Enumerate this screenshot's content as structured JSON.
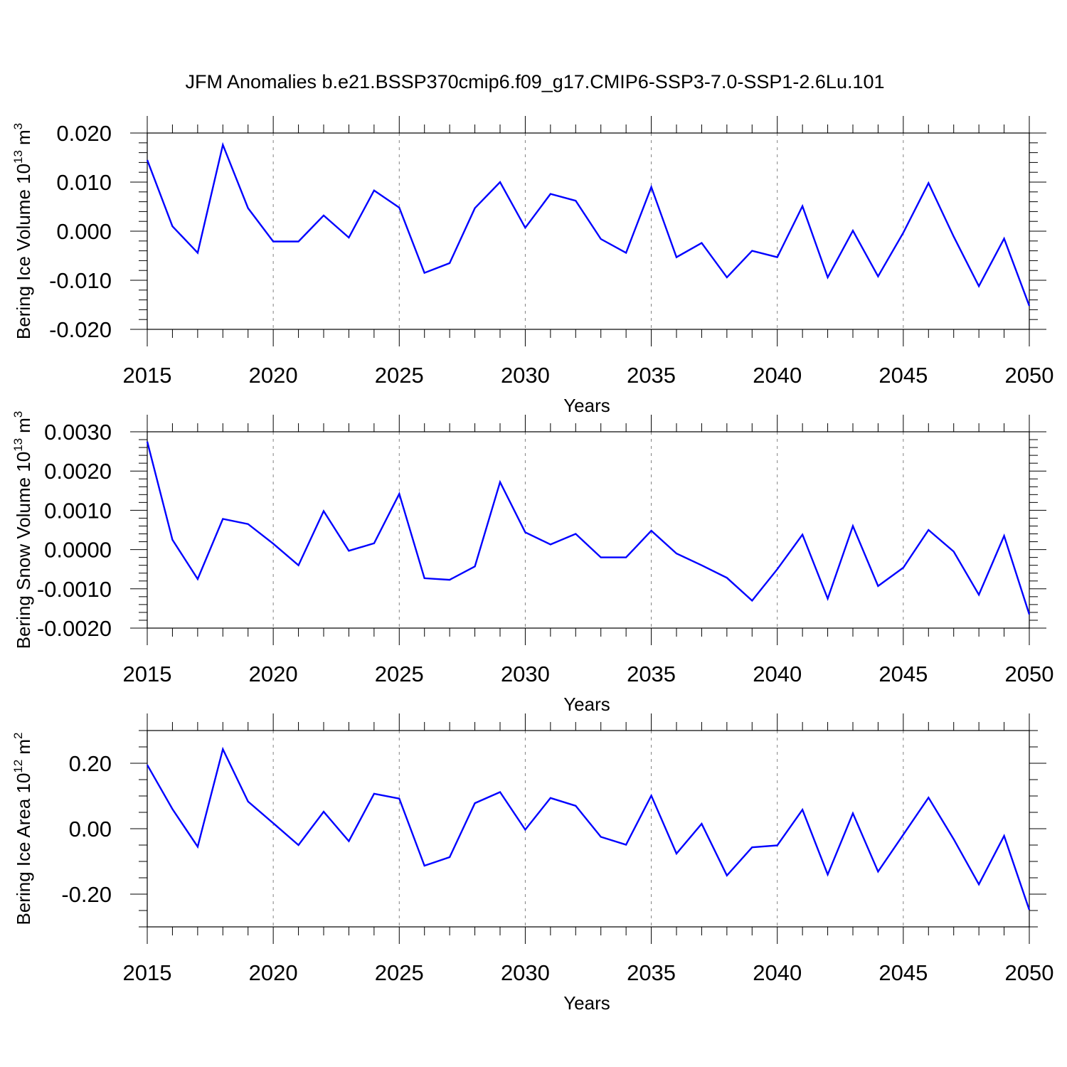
{
  "title": "JFM Anomalies b.e21.BSSP370cmip6.f09_g17.CMIP6-SSP3-7.0-SSP1-2.6Lu.101",
  "colors": {
    "line": "#0000ff",
    "axis": "#000000",
    "grid": "#808080"
  },
  "chart_data": [
    {
      "type": "line",
      "ylabel": "Bering Ice Volume 10",
      "ylabel_exp": "13",
      "ylabel_unit": "m",
      "ylabel_unit_exp": "3",
      "xlabel": "Years",
      "xlim": [
        2015,
        2050
      ],
      "ylim": [
        -0.02,
        0.02
      ],
      "xticks": [
        2015,
        2020,
        2025,
        2030,
        2035,
        2040,
        2045,
        2050
      ],
      "xtick_labels": [
        "2015",
        "2020",
        "2025",
        "2030",
        "2035",
        "2040",
        "2045",
        "2050"
      ],
      "yticks": [
        -0.02,
        -0.01,
        0.0,
        0.01,
        0.02
      ],
      "ytick_labels": [
        "-0.020",
        "-0.010",
        "0.000",
        "0.010",
        "0.020"
      ],
      "yminor_step": 0.002,
      "x": [
        2015,
        2016,
        2017,
        2018,
        2019,
        2020,
        2021,
        2022,
        2023,
        2024,
        2025,
        2026,
        2027,
        2028,
        2029,
        2030,
        2031,
        2032,
        2033,
        2034,
        2035,
        2036,
        2037,
        2038,
        2039,
        2040,
        2041,
        2042,
        2043,
        2044,
        2045,
        2046,
        2047,
        2048,
        2049,
        2050
      ],
      "values": [
        0.0145,
        0.001,
        -0.0044,
        0.0176,
        0.0047,
        -0.0021,
        -0.0021,
        0.0032,
        -0.0013,
        0.0083,
        0.0048,
        -0.0085,
        -0.0065,
        0.0047,
        0.01,
        0.0007,
        0.0076,
        0.0062,
        -0.0016,
        -0.0044,
        0.009,
        -0.0053,
        -0.0024,
        -0.0094,
        -0.004,
        -0.0053,
        0.0051,
        -0.0094,
        0.0001,
        -0.0092,
        -0.0003,
        0.0098,
        -0.0011,
        -0.0112,
        -0.0015,
        -0.0152
      ]
    },
    {
      "type": "line",
      "ylabel": "Bering Snow Volume 10",
      "ylabel_exp": "13",
      "ylabel_unit": "m",
      "ylabel_unit_exp": "3",
      "xlabel": "Years",
      "xlim": [
        2015,
        2050
      ],
      "ylim": [
        -0.002,
        0.003
      ],
      "xticks": [
        2015,
        2020,
        2025,
        2030,
        2035,
        2040,
        2045,
        2050
      ],
      "xtick_labels": [
        "2015",
        "2020",
        "2025",
        "2030",
        "2035",
        "2040",
        "2045",
        "2050"
      ],
      "yticks": [
        -0.002,
        -0.001,
        0.0,
        0.001,
        0.002,
        0.003
      ],
      "ytick_labels": [
        "-0.0020",
        "-0.0010",
        "0.0000",
        "0.0010",
        "0.0020",
        "0.0030"
      ],
      "yminor_step": 0.0002,
      "x": [
        2015,
        2016,
        2017,
        2018,
        2019,
        2020,
        2021,
        2022,
        2023,
        2024,
        2025,
        2026,
        2027,
        2028,
        2029,
        2030,
        2031,
        2032,
        2033,
        2034,
        2035,
        2036,
        2037,
        2038,
        2039,
        2040,
        2041,
        2042,
        2043,
        2044,
        2045,
        2046,
        2047,
        2048,
        2049,
        2050
      ],
      "values": [
        0.00275,
        0.00025,
        -0.00075,
        0.00078,
        0.00065,
        0.00015,
        -0.0004,
        0.00098,
        -3e-05,
        0.00016,
        0.00142,
        -0.00073,
        -0.00077,
        -0.00043,
        0.00172,
        0.00044,
        0.00013,
        0.0004,
        -0.0002,
        -0.0002,
        0.00048,
        -0.0001,
        -0.0004,
        -0.00072,
        -0.0013,
        -0.0005,
        0.00038,
        -0.00125,
        0.0006,
        -0.00093,
        -0.00046,
        0.0005,
        -5e-05,
        -0.00115,
        0.00035,
        -0.00165
      ]
    },
    {
      "type": "line",
      "ylabel": "Bering Ice Area 10",
      "ylabel_exp": "12",
      "ylabel_unit": "m",
      "ylabel_unit_exp": "2",
      "xlabel": "Years",
      "xlim": [
        2015,
        2050
      ],
      "ylim": [
        -0.3,
        0.3
      ],
      "xticks": [
        2015,
        2020,
        2025,
        2030,
        2035,
        2040,
        2045,
        2050
      ],
      "xtick_labels": [
        "2015",
        "2020",
        "2025",
        "2030",
        "2035",
        "2040",
        "2045",
        "2050"
      ],
      "yticks": [
        -0.2,
        0.0,
        0.2
      ],
      "ytick_labels": [
        "-0.20",
        "0.00",
        "0.20"
      ],
      "yminor_step": 0.05,
      "x": [
        2015,
        2016,
        2017,
        2018,
        2019,
        2020,
        2021,
        2022,
        2023,
        2024,
        2025,
        2026,
        2027,
        2028,
        2029,
        2030,
        2031,
        2032,
        2033,
        2034,
        2035,
        2036,
        2037,
        2038,
        2039,
        2040,
        2041,
        2042,
        2043,
        2044,
        2045,
        2046,
        2047,
        2048,
        2049,
        2050
      ],
      "values": [
        0.195,
        0.06,
        -0.055,
        0.243,
        0.083,
        0.017,
        -0.05,
        0.052,
        -0.038,
        0.107,
        0.092,
        -0.113,
        -0.087,
        0.078,
        0.112,
        -0.003,
        0.094,
        0.07,
        -0.025,
        -0.049,
        0.101,
        -0.076,
        0.015,
        -0.143,
        -0.057,
        -0.051,
        0.058,
        -0.14,
        0.047,
        -0.131,
        -0.018,
        0.095,
        -0.032,
        -0.17,
        -0.022,
        -0.248
      ]
    }
  ]
}
